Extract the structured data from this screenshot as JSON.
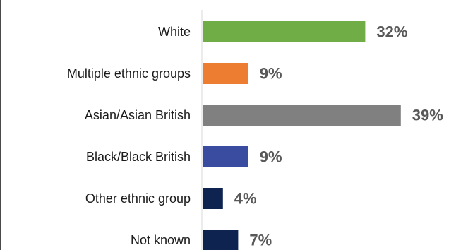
{
  "chart_data": {
    "type": "bar",
    "orientation": "horizontal",
    "title": "",
    "xlabel": "",
    "ylabel": "",
    "categories": [
      "White",
      "Multiple ethnic groups",
      "Asian/Asian British",
      "Black/Black British",
      "Other ethnic group",
      "Not known"
    ],
    "values": [
      32,
      9,
      39,
      9,
      4,
      7
    ],
    "value_labels": [
      "32%",
      "9%",
      "39%",
      "9%",
      "4%",
      "7%"
    ],
    "colors": [
      "#70ad47",
      "#ed7d31",
      "#808080",
      "#3a4ca0",
      "#0f2350",
      "#0f2350"
    ],
    "xlim": [
      0,
      40
    ],
    "grid": false,
    "legend": "none"
  }
}
